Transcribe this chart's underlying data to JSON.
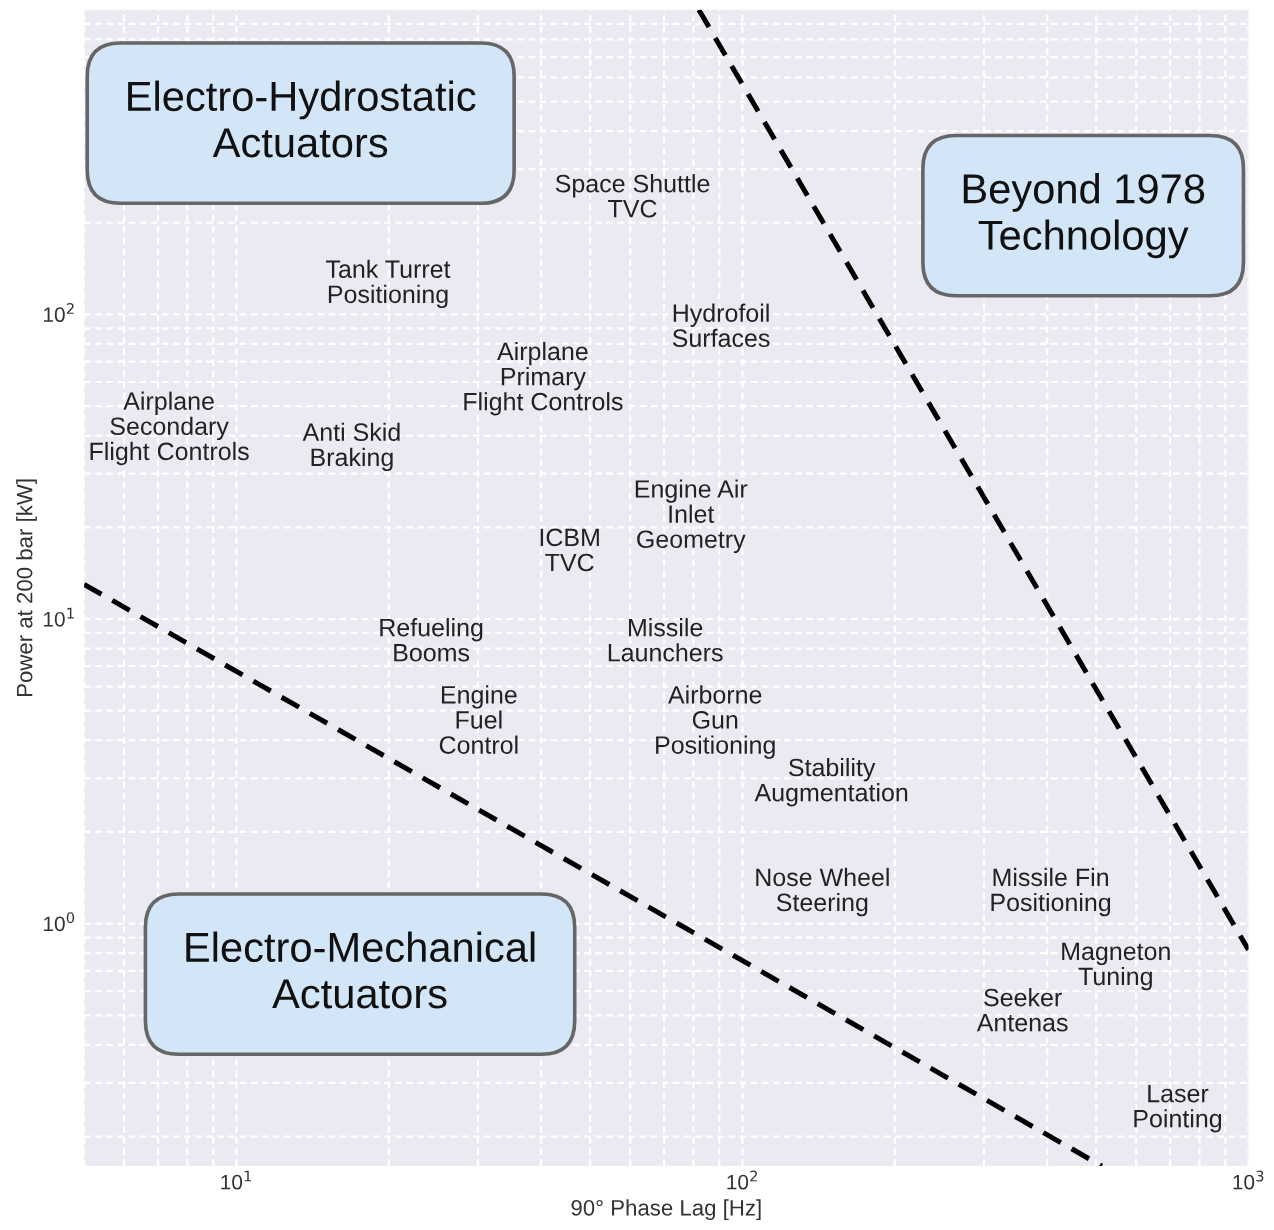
{
  "chart_data": {
    "type": "line",
    "xlabel": "90° Phase Lag [Hz]",
    "ylabel": "Power at 200 bar [kW]",
    "log": "xy",
    "xlim": [
      5,
      1000
    ],
    "ylim": [
      0.16,
      1000
    ],
    "xticks": [
      {
        "value": 10,
        "label": "10$^{1}$"
      },
      {
        "value": 100,
        "label": "10$^{2}$"
      },
      {
        "value": 1000,
        "label": "10$^{3}$"
      }
    ],
    "yticks": [
      {
        "value": 1,
        "label": "10$^{0}$"
      },
      {
        "value": 10,
        "label": "10$^{1}$"
      },
      {
        "value": 100,
        "label": "10$^{2}$"
      }
    ],
    "grid": true,
    "line_style": "dashed",
    "marker": "none",
    "series": [
      {
        "color": "#000000",
        "x": [
          5,
          513
        ],
        "values": [
          13,
          0.16
        ]
      },
      {
        "color": "#000000",
        "x": [
          82,
          1000
        ],
        "values": [
          1000,
          0.82
        ]
      }
    ],
    "annotations": [
      "Space Shuttle\nTVC",
      "Tank Turret\nPositioning",
      "Hydrofoil\nSurfaces",
      "Airplane\nPrimary\nFlight Controls",
      "Airplane\nSecondary\nFlight Controls",
      "Anti Skid\nBraking",
      "Engine Air\nInlet\nGeometry",
      "ICBM\nTVC",
      "Refueling\nBooms",
      "Missile\nLaunchers",
      "Engine\nFuel\nControl",
      "Airborne\nGun\nPositioning",
      "Stability\nAugmentation",
      "Nose Wheel\nSteering",
      "Missile Fin\nPositioning",
      "Magneton\nTuning",
      "Seeker\nAntenas",
      "Laser\nPointing",
      "Electro-Hydrostatic\nActuators",
      "Beyond 1978\nTechnology",
      "Electro-Mechanical\nActuators"
    ]
  }
}
